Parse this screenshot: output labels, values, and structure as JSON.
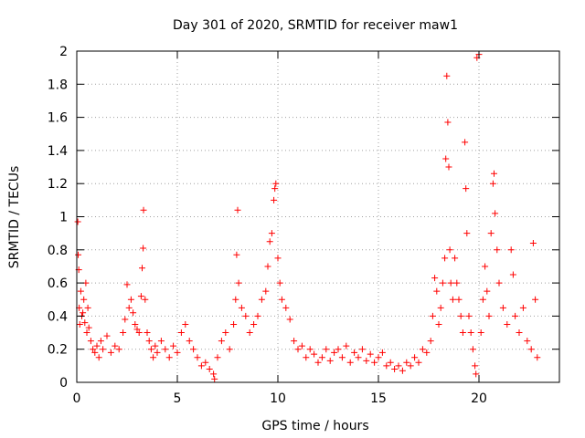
{
  "chart_data": {
    "type": "scatter",
    "title": "Day 301 of 2020, SRMTID for receiver maw1",
    "xlabel": "GPS time / hours",
    "ylabel": "SRMTID / TECUs",
    "xlim": [
      0,
      24
    ],
    "ylim": [
      0,
      2
    ],
    "xticks": [
      0,
      5,
      10,
      15,
      20
    ],
    "yticks": [
      0,
      0.2,
      0.4,
      0.6,
      0.8,
      1,
      1.2,
      1.4,
      1.6,
      1.8,
      2
    ],
    "ytick_labels": [
      "0",
      "0.2",
      "0.4",
      "0.6",
      "0.8",
      "1",
      "1.2",
      "1.4",
      "1.6",
      "1.8",
      "2"
    ],
    "grid": true,
    "marker": "+",
    "marker_color": "#ff0000",
    "series": [
      {
        "name": "maw1",
        "points": [
          [
            0.05,
            0.97
          ],
          [
            0.07,
            0.77
          ],
          [
            0.1,
            0.68
          ],
          [
            0.12,
            0.45
          ],
          [
            0.15,
            0.35
          ],
          [
            0.2,
            0.55
          ],
          [
            0.25,
            0.4
          ],
          [
            0.3,
            0.42
          ],
          [
            0.35,
            0.5
          ],
          [
            0.4,
            0.36
          ],
          [
            0.45,
            0.6
          ],
          [
            0.5,
            0.3
          ],
          [
            0.55,
            0.45
          ],
          [
            0.6,
            0.33
          ],
          [
            0.7,
            0.25
          ],
          [
            0.8,
            0.2
          ],
          [
            0.9,
            0.18
          ],
          [
            1.0,
            0.22
          ],
          [
            1.1,
            0.15
          ],
          [
            1.2,
            0.25
          ],
          [
            1.3,
            0.2
          ],
          [
            1.5,
            0.28
          ],
          [
            1.7,
            0.18
          ],
          [
            1.9,
            0.22
          ],
          [
            2.1,
            0.2
          ],
          [
            2.3,
            0.3
          ],
          [
            2.4,
            0.38
          ],
          [
            2.5,
            0.59
          ],
          [
            2.6,
            0.45
          ],
          [
            2.7,
            0.5
          ],
          [
            2.8,
            0.42
          ],
          [
            2.9,
            0.35
          ],
          [
            3.0,
            0.32
          ],
          [
            3.1,
            0.3
          ],
          [
            3.2,
            0.52
          ],
          [
            3.25,
            0.69
          ],
          [
            3.3,
            0.81
          ],
          [
            3.32,
            1.04
          ],
          [
            3.4,
            0.5
          ],
          [
            3.5,
            0.3
          ],
          [
            3.6,
            0.25
          ],
          [
            3.7,
            0.2
          ],
          [
            3.8,
            0.15
          ],
          [
            3.9,
            0.22
          ],
          [
            4.0,
            0.18
          ],
          [
            4.2,
            0.25
          ],
          [
            4.4,
            0.2
          ],
          [
            4.6,
            0.15
          ],
          [
            4.8,
            0.22
          ],
          [
            5.0,
            0.18
          ],
          [
            5.2,
            0.3
          ],
          [
            5.4,
            0.35
          ],
          [
            5.6,
            0.25
          ],
          [
            5.8,
            0.2
          ],
          [
            6.0,
            0.15
          ],
          [
            6.2,
            0.1
          ],
          [
            6.4,
            0.12
          ],
          [
            6.6,
            0.08
          ],
          [
            6.8,
            0.05
          ],
          [
            6.85,
            0.02
          ],
          [
            7.0,
            0.15
          ],
          [
            7.2,
            0.25
          ],
          [
            7.4,
            0.3
          ],
          [
            7.6,
            0.2
          ],
          [
            7.8,
            0.35
          ],
          [
            7.9,
            0.5
          ],
          [
            7.95,
            0.77
          ],
          [
            8.0,
            1.04
          ],
          [
            8.05,
            0.6
          ],
          [
            8.2,
            0.45
          ],
          [
            8.4,
            0.4
          ],
          [
            8.6,
            0.3
          ],
          [
            8.8,
            0.35
          ],
          [
            9.0,
            0.4
          ],
          [
            9.2,
            0.5
          ],
          [
            9.4,
            0.55
          ],
          [
            9.5,
            0.7
          ],
          [
            9.6,
            0.85
          ],
          [
            9.7,
            0.9
          ],
          [
            9.8,
            1.1
          ],
          [
            9.85,
            1.17
          ],
          [
            9.9,
            1.2
          ],
          [
            10.0,
            0.75
          ],
          [
            10.1,
            0.6
          ],
          [
            10.2,
            0.5
          ],
          [
            10.4,
            0.45
          ],
          [
            10.6,
            0.38
          ],
          [
            10.8,
            0.25
          ],
          [
            11.0,
            0.2
          ],
          [
            11.2,
            0.22
          ],
          [
            11.4,
            0.15
          ],
          [
            11.6,
            0.2
          ],
          [
            11.8,
            0.17
          ],
          [
            12.0,
            0.12
          ],
          [
            12.2,
            0.15
          ],
          [
            12.4,
            0.2
          ],
          [
            12.6,
            0.13
          ],
          [
            12.8,
            0.18
          ],
          [
            13.0,
            0.2
          ],
          [
            13.2,
            0.15
          ],
          [
            13.4,
            0.22
          ],
          [
            13.6,
            0.12
          ],
          [
            13.8,
            0.18
          ],
          [
            14.0,
            0.15
          ],
          [
            14.2,
            0.2
          ],
          [
            14.4,
            0.13
          ],
          [
            14.6,
            0.17
          ],
          [
            14.8,
            0.12
          ],
          [
            15.0,
            0.15
          ],
          [
            15.2,
            0.18
          ],
          [
            15.4,
            0.1
          ],
          [
            15.6,
            0.12
          ],
          [
            15.8,
            0.08
          ],
          [
            16.0,
            0.1
          ],
          [
            16.2,
            0.07
          ],
          [
            16.4,
            0.12
          ],
          [
            16.6,
            0.1
          ],
          [
            16.8,
            0.15
          ],
          [
            17.0,
            0.12
          ],
          [
            17.2,
            0.2
          ],
          [
            17.4,
            0.18
          ],
          [
            17.6,
            0.25
          ],
          [
            17.7,
            0.4
          ],
          [
            17.8,
            0.63
          ],
          [
            17.9,
            0.55
          ],
          [
            18.0,
            0.35
          ],
          [
            18.1,
            0.45
          ],
          [
            18.2,
            0.6
          ],
          [
            18.3,
            0.75
          ],
          [
            18.35,
            1.35
          ],
          [
            18.4,
            1.85
          ],
          [
            18.45,
            1.57
          ],
          [
            18.5,
            1.3
          ],
          [
            18.55,
            0.8
          ],
          [
            18.6,
            0.6
          ],
          [
            18.7,
            0.5
          ],
          [
            18.8,
            0.75
          ],
          [
            18.9,
            0.6
          ],
          [
            19.0,
            0.5
          ],
          [
            19.1,
            0.4
          ],
          [
            19.2,
            0.3
          ],
          [
            19.3,
            1.45
          ],
          [
            19.35,
            1.17
          ],
          [
            19.4,
            0.9
          ],
          [
            19.5,
            0.4
          ],
          [
            19.6,
            0.3
          ],
          [
            19.7,
            0.2
          ],
          [
            19.8,
            0.1
          ],
          [
            19.85,
            0.05
          ],
          [
            19.9,
            1.96
          ],
          [
            20.0,
            1.98
          ],
          [
            20.1,
            0.3
          ],
          [
            20.2,
            0.5
          ],
          [
            20.3,
            0.7
          ],
          [
            20.4,
            0.55
          ],
          [
            20.5,
            0.4
          ],
          [
            20.6,
            0.9
          ],
          [
            20.7,
            1.2
          ],
          [
            20.75,
            1.26
          ],
          [
            20.8,
            1.02
          ],
          [
            20.9,
            0.8
          ],
          [
            21.0,
            0.6
          ],
          [
            21.2,
            0.45
          ],
          [
            21.4,
            0.35
          ],
          [
            21.6,
            0.8
          ],
          [
            21.7,
            0.65
          ],
          [
            21.8,
            0.4
          ],
          [
            22.0,
            0.3
          ],
          [
            22.2,
            0.45
          ],
          [
            22.4,
            0.25
          ],
          [
            22.6,
            0.2
          ],
          [
            22.7,
            0.84
          ],
          [
            22.8,
            0.5
          ],
          [
            22.9,
            0.15
          ]
        ]
      }
    ]
  }
}
